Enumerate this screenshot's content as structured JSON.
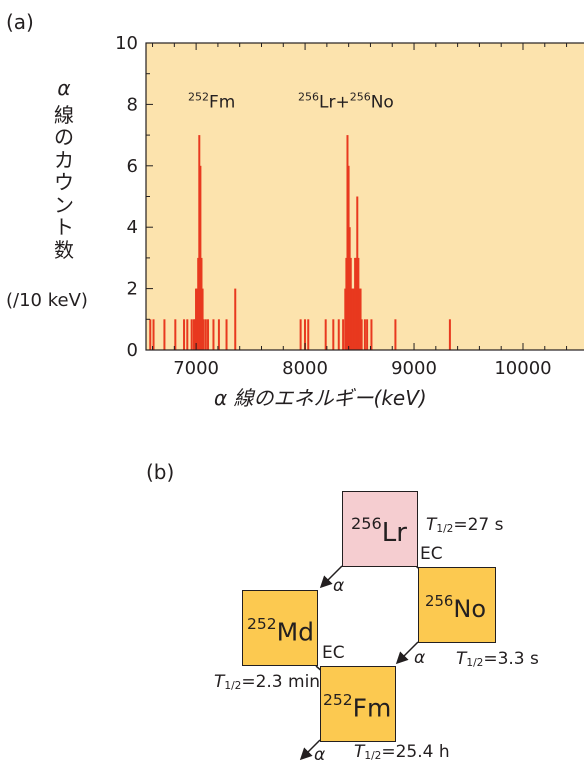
{
  "panel_a": {
    "label": "(a)",
    "chart_data": {
      "type": "bar",
      "title": "",
      "xlabel": "α 線のエネルギー(keV)",
      "ylabel": "α線のカウント数",
      "ylabel_unit": "(/10 keV)",
      "xlim": [
        6540,
        10560
      ],
      "ylim": [
        0,
        10
      ],
      "xticks": [
        7000,
        8000,
        9000,
        10000
      ],
      "yticks": [
        0,
        2,
        4,
        6,
        8,
        10
      ],
      "bin_width_keV": 10,
      "series_color": "#e8391f",
      "plot_background": "#fce3ad",
      "annotations": [
        {
          "sup": "252",
          "text": "Fm",
          "x": 6950,
          "y": 7.9
        },
        {
          "sup": "256",
          "text": "Lr+",
          "sup2": "256",
          "text2": "No",
          "x": 8000,
          "y": 7.9
        }
      ],
      "bars": [
        {
          "x": 6570,
          "count": 1
        },
        {
          "x": 6600,
          "count": 1
        },
        {
          "x": 6700,
          "count": 1
        },
        {
          "x": 6800,
          "count": 1
        },
        {
          "x": 6880,
          "count": 1
        },
        {
          "x": 6910,
          "count": 1
        },
        {
          "x": 6950,
          "count": 1
        },
        {
          "x": 6970,
          "count": 1
        },
        {
          "x": 6980,
          "count": 1
        },
        {
          "x": 6990,
          "count": 2
        },
        {
          "x": 7000,
          "count": 2
        },
        {
          "x": 7010,
          "count": 3
        },
        {
          "x": 7020,
          "count": 7
        },
        {
          "x": 7030,
          "count": 6
        },
        {
          "x": 7040,
          "count": 3
        },
        {
          "x": 7050,
          "count": 2
        },
        {
          "x": 7060,
          "count": 1
        },
        {
          "x": 7080,
          "count": 1
        },
        {
          "x": 7100,
          "count": 1
        },
        {
          "x": 7150,
          "count": 1
        },
        {
          "x": 7200,
          "count": 1
        },
        {
          "x": 7270,
          "count": 1
        },
        {
          "x": 7350,
          "count": 2
        },
        {
          "x": 7950,
          "count": 1
        },
        {
          "x": 7990,
          "count": 1
        },
        {
          "x": 8020,
          "count": 1
        },
        {
          "x": 8180,
          "count": 1
        },
        {
          "x": 8250,
          "count": 1
        },
        {
          "x": 8300,
          "count": 1
        },
        {
          "x": 8340,
          "count": 1
        },
        {
          "x": 8360,
          "count": 2
        },
        {
          "x": 8370,
          "count": 3
        },
        {
          "x": 8380,
          "count": 7
        },
        {
          "x": 8390,
          "count": 6
        },
        {
          "x": 8400,
          "count": 4
        },
        {
          "x": 8410,
          "count": 3
        },
        {
          "x": 8420,
          "count": 2
        },
        {
          "x": 8430,
          "count": 2
        },
        {
          "x": 8440,
          "count": 2
        },
        {
          "x": 8450,
          "count": 3
        },
        {
          "x": 8460,
          "count": 3
        },
        {
          "x": 8470,
          "count": 5
        },
        {
          "x": 8480,
          "count": 3
        },
        {
          "x": 8490,
          "count": 2
        },
        {
          "x": 8500,
          "count": 2
        },
        {
          "x": 8510,
          "count": 1
        },
        {
          "x": 8540,
          "count": 1
        },
        {
          "x": 8560,
          "count": 1
        },
        {
          "x": 8600,
          "count": 1
        },
        {
          "x": 8820,
          "count": 1
        },
        {
          "x": 9320,
          "count": 1
        }
      ]
    }
  },
  "panel_b": {
    "label": "(b)",
    "nuclides": [
      {
        "id": "lr256",
        "mass": "256",
        "symbol": "Lr",
        "color": "#f5cdd0"
      },
      {
        "id": "no256",
        "mass": "256",
        "symbol": "No",
        "color": "#fcc950"
      },
      {
        "id": "md252",
        "mass": "252",
        "symbol": "Md",
        "color": "#fcc950"
      },
      {
        "id": "fm252",
        "mass": "252",
        "symbol": "Fm",
        "color": "#fcc950"
      }
    ],
    "half_lives": {
      "lr256": {
        "T": "T",
        "sub": "1/2",
        "value": "=27 s"
      },
      "no256": {
        "T": "T",
        "sub": "1/2",
        "value": "=3.3 s"
      },
      "md252": {
        "T": "T",
        "sub": "1/2",
        "value": "=2.3 min"
      },
      "fm252": {
        "T": "T",
        "sub": "1/2",
        "value": "=25.4 h"
      }
    },
    "decays": {
      "lr_alpha": "α",
      "lr_ec": "EC",
      "no_alpha": "α",
      "md_ec": "EC",
      "fm_alpha": "α"
    }
  }
}
